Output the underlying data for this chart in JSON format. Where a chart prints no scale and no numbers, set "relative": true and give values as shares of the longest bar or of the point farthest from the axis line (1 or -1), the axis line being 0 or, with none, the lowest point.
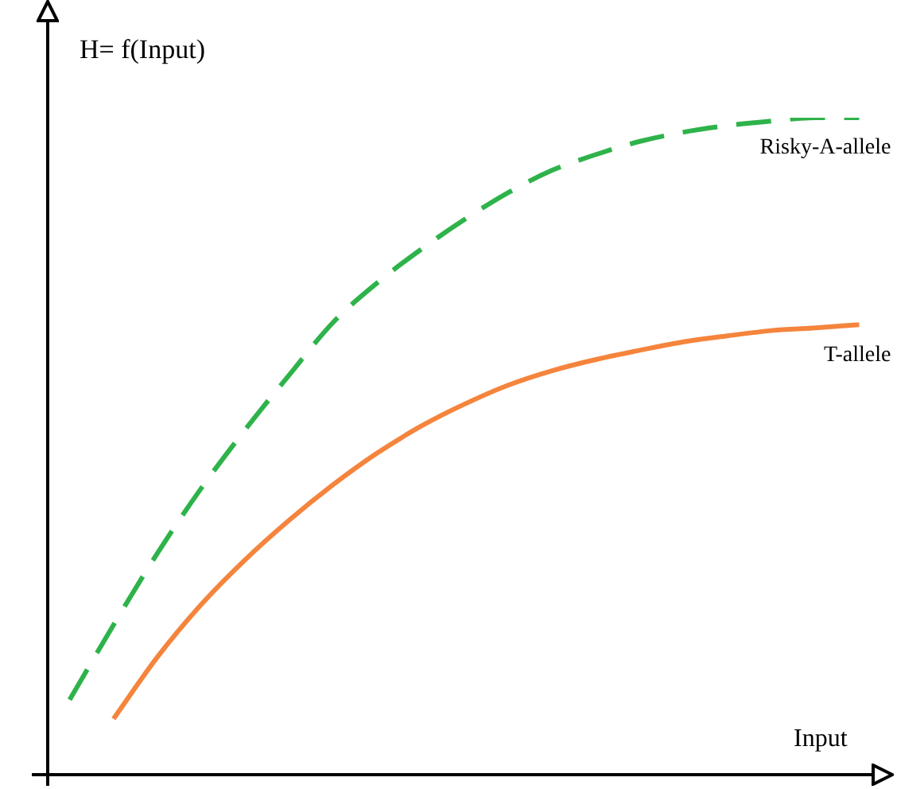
{
  "chart_data": {
    "type": "line",
    "relative": true,
    "xlabel": "Input",
    "ylabel": "H= f(Input)",
    "categories": [
      null,
      null,
      null,
      null,
      null,
      null,
      null,
      null,
      null,
      null,
      null,
      null,
      null,
      null,
      null,
      null,
      null,
      null,
      null
    ],
    "legend": false,
    "marker": "none",
    "series": [
      {
        "name": "Risky-A-allele",
        "color": "#2eb34a",
        "line_style": "dashed",
        "values": [
          0.114,
          0.228,
          0.337,
          0.436,
          0.525,
          0.608,
          0.688,
          0.748,
          0.799,
          0.845,
          0.886,
          0.92,
          0.944,
          0.964,
          0.978,
          0.988,
          0.995,
          1,
          1
        ]
      },
      {
        "name": "T-allele",
        "color": "#f5843c",
        "line_style": "solid",
        "values": [
          null,
          0.085,
          0.179,
          0.259,
          0.327,
          0.387,
          0.441,
          0.489,
          0.53,
          0.564,
          0.593,
          0.615,
          0.632,
          0.646,
          0.659,
          0.668,
          0.676,
          0.68,
          0.685
        ]
      }
    ]
  }
}
